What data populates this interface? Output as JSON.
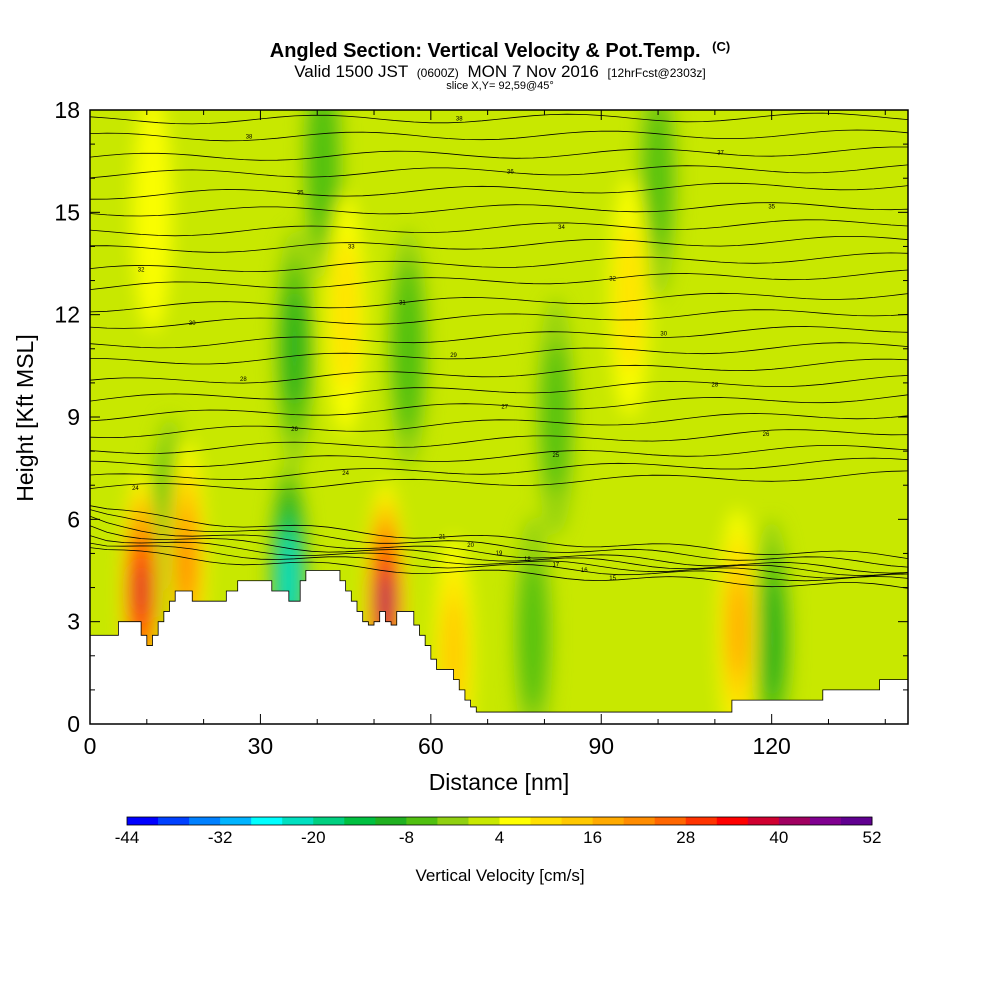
{
  "header": {
    "title_main": "Angled Section: Vertical Velocity & Pot.Temp.",
    "title_unit": "(C)",
    "valid_a": "Valid 1500 JST",
    "valid_z": "(0600Z)",
    "valid_b": "MON 7 Nov 2016",
    "valid_fcst": "[12hrFcst@2303z]",
    "slice": "slice X,Y= 92,59@45°"
  },
  "chart_data": {
    "type": "heatmap",
    "title": "Angled Section: Vertical Velocity & Pot.Temp. (C)",
    "xlabel": "Distance [nm]",
    "ylabel": "Height [Kft MSL]",
    "xlim": [
      0,
      144
    ],
    "ylim": [
      0,
      18
    ],
    "x_ticks": [
      "0",
      "30",
      "60",
      "90",
      "120"
    ],
    "x_tick_values": [
      0,
      30,
      60,
      90,
      120
    ],
    "y_ticks": [
      "0",
      "3",
      "6",
      "9",
      "12",
      "15",
      "18"
    ],
    "y_tick_values": [
      0,
      3,
      6,
      9,
      12,
      15,
      18
    ],
    "colorbar": {
      "label": "Vertical Velocity [cm/s]",
      "min": -44,
      "max": 52,
      "step": 4,
      "tick_labels": [
        "-44",
        "-32",
        "-20",
        "-8",
        "4",
        "16",
        "28",
        "40",
        "52"
      ],
      "tick_values": [
        -44,
        -32,
        -20,
        -8,
        4,
        16,
        28,
        40,
        52
      ],
      "colors": [
        "#0000ff",
        "#0040ff",
        "#0080ff",
        "#00b4ff",
        "#00ffff",
        "#00e0c0",
        "#00d080",
        "#00c040",
        "#20b020",
        "#50c010",
        "#90d010",
        "#c8e800",
        "#ffff00",
        "#ffe000",
        "#ffc800",
        "#ffaa00",
        "#ff8c00",
        "#ff6600",
        "#ff3300",
        "#ff0000",
        "#d00030",
        "#a00060",
        "#800090",
        "#600090"
      ]
    },
    "background_level_cm_s": 2,
    "updrafts": [
      {
        "x": 9,
        "y": 3.9,
        "w_cm_s": 38
      },
      {
        "x": 17,
        "y": 4.8,
        "w_cm_s": 22
      },
      {
        "x": 52,
        "y": 3.6,
        "w_cm_s": 40
      },
      {
        "x": 64,
        "y": 2.0,
        "w_cm_s": 14
      },
      {
        "x": 114,
        "y": 2.8,
        "w_cm_s": 16
      },
      {
        "x": 95,
        "y": 12.5,
        "w_cm_s": 8
      },
      {
        "x": 45,
        "y": 12.0,
        "w_cm_s": 8
      },
      {
        "x": 11,
        "y": 15.0,
        "w_cm_s": 6
      }
    ],
    "downdrafts": [
      {
        "x": 35,
        "y": 4.2,
        "w_cm_s": -24
      },
      {
        "x": 14,
        "y": 5.5,
        "w_cm_s": -10
      },
      {
        "x": 120,
        "y": 2.5,
        "w_cm_s": -10
      },
      {
        "x": 78,
        "y": 2.6,
        "w_cm_s": -6
      },
      {
        "x": 36,
        "y": 11.0,
        "w_cm_s": -10
      },
      {
        "x": 56,
        "y": 11.0,
        "w_cm_s": -8
      },
      {
        "x": 41,
        "y": 16.5,
        "w_cm_s": -8
      },
      {
        "x": 100,
        "y": 16.0,
        "w_cm_s": -5
      },
      {
        "x": 82,
        "y": 9.0,
        "w_cm_s": -5
      }
    ],
    "terrain_top_kft": [
      [
        0,
        2.6
      ],
      [
        3,
        2.6
      ],
      [
        5,
        3.0
      ],
      [
        7,
        3.0
      ],
      [
        9,
        2.6
      ],
      [
        10,
        2.3
      ],
      [
        11,
        2.6
      ],
      [
        12,
        3.0
      ],
      [
        13,
        3.3
      ],
      [
        14,
        3.6
      ],
      [
        15,
        3.9
      ],
      [
        17,
        3.9
      ],
      [
        18,
        3.6
      ],
      [
        20,
        3.6
      ],
      [
        22,
        3.6
      ],
      [
        24,
        3.9
      ],
      [
        26,
        4.2
      ],
      [
        31,
        4.2
      ],
      [
        32,
        3.9
      ],
      [
        34,
        3.9
      ],
      [
        35,
        3.6
      ],
      [
        36,
        3.6
      ],
      [
        37,
        4.2
      ],
      [
        38,
        4.5
      ],
      [
        43,
        4.5
      ],
      [
        44,
        4.2
      ],
      [
        45,
        3.9
      ],
      [
        46,
        3.6
      ],
      [
        47,
        3.3
      ],
      [
        48,
        3.0
      ],
      [
        49,
        2.9
      ],
      [
        50,
        3.0
      ],
      [
        51,
        3.3
      ],
      [
        52,
        3.0
      ],
      [
        53,
        2.9
      ],
      [
        54,
        3.3
      ],
      [
        56,
        3.3
      ],
      [
        57,
        2.9
      ],
      [
        58,
        2.6
      ],
      [
        59,
        2.3
      ],
      [
        60,
        1.9
      ],
      [
        61,
        1.6
      ],
      [
        63,
        1.6
      ],
      [
        64,
        1.3
      ],
      [
        65,
        1.0
      ],
      [
        66,
        0.7
      ],
      [
        67,
        0.5
      ],
      [
        68,
        0.35
      ],
      [
        112,
        0.35
      ],
      [
        113,
        0.7
      ],
      [
        128,
        0.7
      ],
      [
        129,
        1.0
      ],
      [
        138,
        1.0
      ],
      [
        139,
        1.3
      ],
      [
        144,
        1.3
      ]
    ],
    "theta_contours_C": [
      {
        "z_left": 6.9,
        "z_right": 7.3,
        "label": "24"
      },
      {
        "z_left": 7.2,
        "z_right": 7.7,
        "label": "24"
      },
      {
        "z_left": 7.6,
        "z_right": 8.1,
        "label": "25"
      },
      {
        "z_left": 8.0,
        "z_right": 8.6,
        "label": "26"
      },
      {
        "z_left": 8.5,
        "z_right": 9.1,
        "label": "26"
      },
      {
        "z_left": 9.0,
        "z_right": 9.6,
        "label": "27"
      },
      {
        "z_left": 9.5,
        "z_right": 10.1,
        "label": "28"
      },
      {
        "z_left": 10.0,
        "z_right": 10.6,
        "label": "28"
      },
      {
        "z_left": 10.6,
        "z_right": 11.1,
        "label": "29"
      },
      {
        "z_left": 11.1,
        "z_right": 11.6,
        "label": "30"
      },
      {
        "z_left": 11.7,
        "z_right": 12.1,
        "label": "30"
      },
      {
        "z_left": 12.2,
        "z_right": 12.6,
        "label": "31"
      },
      {
        "z_left": 12.8,
        "z_right": 13.2,
        "label": "32"
      },
      {
        "z_left": 13.3,
        "z_right": 13.7,
        "label": "32"
      },
      {
        "z_left": 13.9,
        "z_right": 14.2,
        "label": "33"
      },
      {
        "z_left": 14.4,
        "z_right": 14.7,
        "label": "34"
      },
      {
        "z_left": 15.0,
        "z_right": 15.2,
        "label": "35"
      },
      {
        "z_left": 15.5,
        "z_right": 15.8,
        "label": "35"
      },
      {
        "z_left": 16.1,
        "z_right": 16.3,
        "label": "36"
      },
      {
        "z_left": 16.6,
        "z_right": 16.8,
        "label": "37"
      },
      {
        "z_left": 17.2,
        "z_right": 17.3,
        "label": "38"
      },
      {
        "z_left": 17.7,
        "z_right": 17.8,
        "label": "38"
      }
    ],
    "theta_lower_contours_C": [
      {
        "label": "21",
        "z_left": 6.4,
        "z_right": 4.9
      },
      {
        "label": "20",
        "z_left": 6.2,
        "z_right": 4.7
      },
      {
        "label": "19",
        "z_left": 6.0,
        "z_right": 4.5
      },
      {
        "label": "18",
        "z_left": 5.8,
        "z_right": 4.4
      },
      {
        "label": "17",
        "z_left": 5.6,
        "z_right": 4.3
      },
      {
        "label": "16",
        "z_left": 5.4,
        "z_right": 4.2
      },
      {
        "label": "15",
        "z_left": 5.2,
        "z_right": 4.0
      }
    ]
  }
}
